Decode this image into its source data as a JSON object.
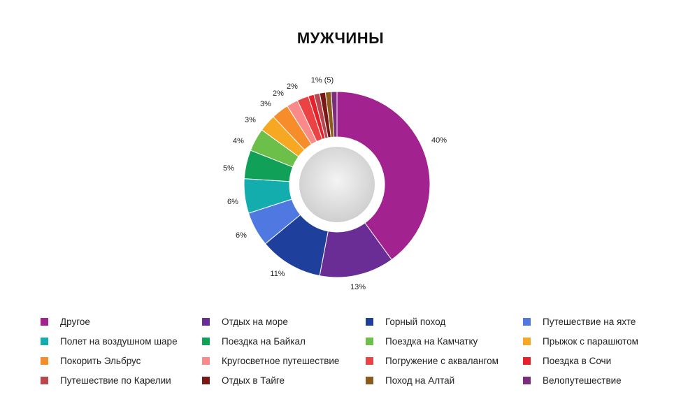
{
  "chart_data": {
    "type": "pie",
    "title": "МУЖЧИНЫ",
    "categories": [
      "Другое",
      "Отдых на море",
      "Горный поход",
      "Путешествие на яхте",
      "Полет на воздушном шаре",
      "Поездка на Байкал",
      "Поездка на Камчатку",
      "Прыжок с парашютом",
      "Покорить Эльбрус",
      "Кругосветное путешествие",
      "Погружение с аквалангом",
      "Поездка в Сочи",
      "Путешествие по Карелии",
      "Отдых в Тайге",
      "Поход на Алтай",
      "Велопутешествие"
    ],
    "values": [
      40,
      13,
      11,
      6,
      6,
      5,
      4,
      3,
      3,
      2,
      2,
      1,
      1,
      1,
      1,
      1
    ],
    "colors": [
      "#a2238f",
      "#6a2d96",
      "#1e3f9b",
      "#4f79e0",
      "#14adad",
      "#11a058",
      "#6cc04a",
      "#f7a823",
      "#f78c2a",
      "#fa8a8a",
      "#eb4343",
      "#e8202a",
      "#b8474f",
      "#7a1818",
      "#8b5a1c",
      "#7b2c7c"
    ],
    "slice_labels": [
      "40%",
      "13%",
      "11%",
      "6%",
      "6%",
      "5%",
      "4%",
      "3%",
      "3%",
      "2%",
      "2%",
      "",
      "",
      "",
      "",
      ""
    ],
    "small_group_label": "1% (5)",
    "legend_position": "bottom"
  }
}
